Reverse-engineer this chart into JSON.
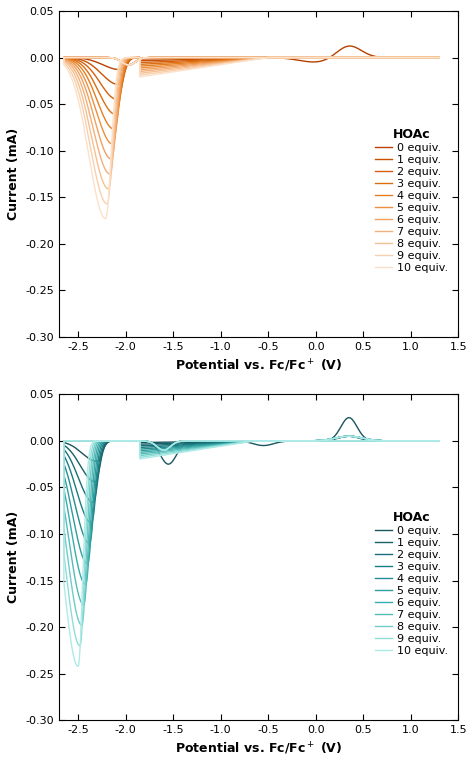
{
  "top_colors": [
    "#B84000",
    "#C85200",
    "#D46010",
    "#DC6E10",
    "#E47E20",
    "#EC9040",
    "#F0A060",
    "#F3B07A",
    "#F6C090",
    "#F9D0AE",
    "#FCE0C8"
  ],
  "bottom_colors": [
    "#1A5560",
    "#1A6068",
    "#1A6E76",
    "#1A7C84",
    "#258C90",
    "#309C9C",
    "#3AACAA",
    "#55BCB8",
    "#70CCC8",
    "#90DDD8",
    "#AEEAE8"
  ],
  "legend_labels": [
    "0 equiv.",
    "1 equiv.",
    "2 equiv.",
    "3 equiv.",
    "4 equiv.",
    "5 equiv.",
    "6 equiv.",
    "7 equiv.",
    "8 equiv.",
    "9 equiv.",
    "10 equiv."
  ],
  "legend_title": "HOAc",
  "xlabel": "Potential vs. Fc/Fc$^+$ (V)",
  "ylabel": "Current (mA)",
  "xlim": [
    -2.7,
    1.5
  ],
  "ylim": [
    -0.3,
    0.05
  ],
  "xticks": [
    -2.5,
    -2.0,
    -1.5,
    -1.0,
    -0.5,
    0.0,
    0.5,
    1.0,
    1.5
  ],
  "yticks": [
    -0.3,
    -0.25,
    -0.2,
    -0.15,
    -0.1,
    -0.05,
    0.0,
    0.05
  ],
  "background_color": "#ffffff"
}
